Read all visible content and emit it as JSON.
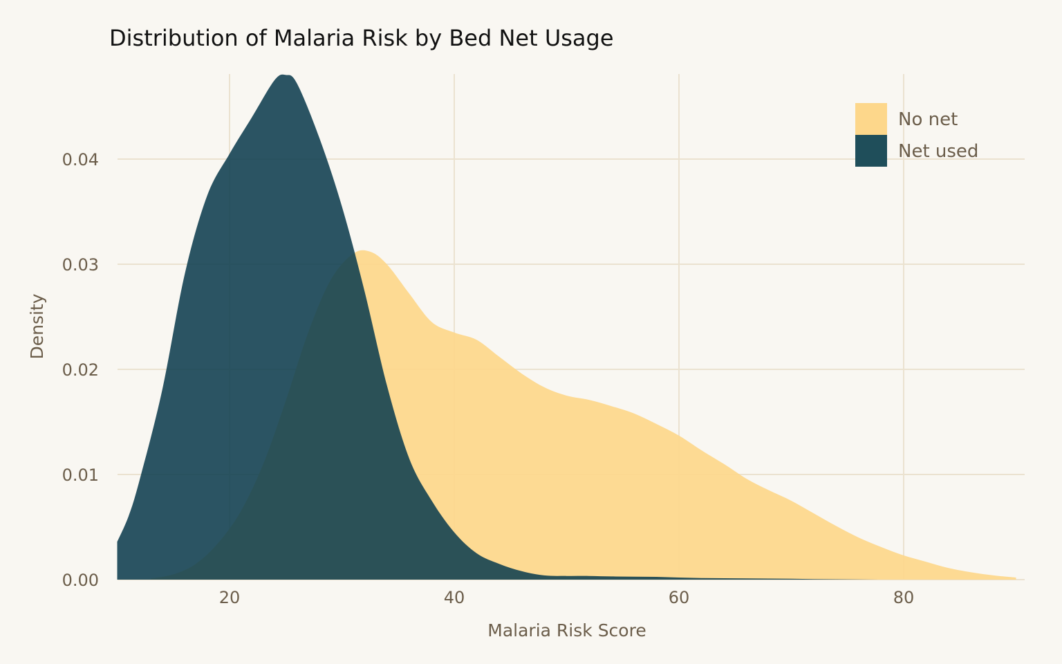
{
  "chart_data": {
    "type": "area",
    "title": "Distribution of Malaria Risk by Bed Net Usage",
    "xlabel": "Malaria Risk Score",
    "ylabel": "Density",
    "xlim": [
      10,
      90
    ],
    "ylim": [
      0,
      0.048
    ],
    "x_ticks": [
      20,
      40,
      60,
      80
    ],
    "x_tick_labels": [
      "20",
      "40",
      "60",
      "80"
    ],
    "y_ticks": [
      0,
      0.01,
      0.02,
      0.03,
      0.04
    ],
    "y_tick_labels": [
      "0.00",
      "0.01",
      "0.02",
      "0.03",
      "0.04"
    ],
    "grid": true,
    "legend_position": "top-right",
    "series": [
      {
        "name": "No net",
        "color": "#fdd78b",
        "opacity": 0.92,
        "x": [
          13,
          15,
          17,
          19,
          21,
          23,
          25,
          27,
          29,
          31,
          32.5,
          34,
          36,
          38,
          40,
          42,
          44,
          46,
          48,
          50,
          52,
          54,
          56,
          58,
          60,
          62,
          64,
          66,
          68,
          70,
          72,
          74,
          76,
          78,
          80,
          82,
          84,
          86,
          88,
          90
        ],
        "y": [
          0.0001,
          0.0005,
          0.0015,
          0.0035,
          0.0065,
          0.011,
          0.017,
          0.0235,
          0.0285,
          0.031,
          0.0312,
          0.03,
          0.0272,
          0.0245,
          0.0235,
          0.0228,
          0.0212,
          0.0196,
          0.0183,
          0.0175,
          0.0171,
          0.0165,
          0.0158,
          0.0148,
          0.0137,
          0.0123,
          0.011,
          0.0096,
          0.0085,
          0.0075,
          0.0063,
          0.0051,
          0.004,
          0.0031,
          0.0023,
          0.0017,
          0.0011,
          0.0007,
          0.0004,
          0.0002
        ]
      },
      {
        "name": "Net used",
        "color": "#0e3d4e",
        "opacity": 0.88,
        "x": [
          10,
          11,
          12,
          14,
          16,
          18,
          20,
          22,
          24,
          25,
          26,
          28,
          30,
          32,
          34,
          36,
          38,
          40,
          42,
          44,
          46,
          48,
          50,
          52,
          54,
          56,
          58,
          60,
          62,
          64,
          66,
          68,
          70,
          72,
          74,
          76,
          78,
          80
        ],
        "y": [
          0.0036,
          0.006,
          0.0095,
          0.018,
          0.029,
          0.0365,
          0.0405,
          0.044,
          0.0475,
          0.048,
          0.0472,
          0.042,
          0.0355,
          0.0275,
          0.0185,
          0.0115,
          0.0075,
          0.0045,
          0.0025,
          0.0015,
          0.0008,
          0.0004,
          0.00035,
          0.00035,
          0.0003,
          0.00028,
          0.00026,
          0.0002,
          0.00015,
          0.00013,
          0.00012,
          0.0001,
          8e-05,
          5e-05,
          3e-05,
          1e-05,
          0,
          0
        ]
      }
    ],
    "legend": [
      {
        "label": "No net",
        "color": "#fdd78b"
      },
      {
        "label": "Net used",
        "color": "#1f4e5a"
      }
    ]
  }
}
